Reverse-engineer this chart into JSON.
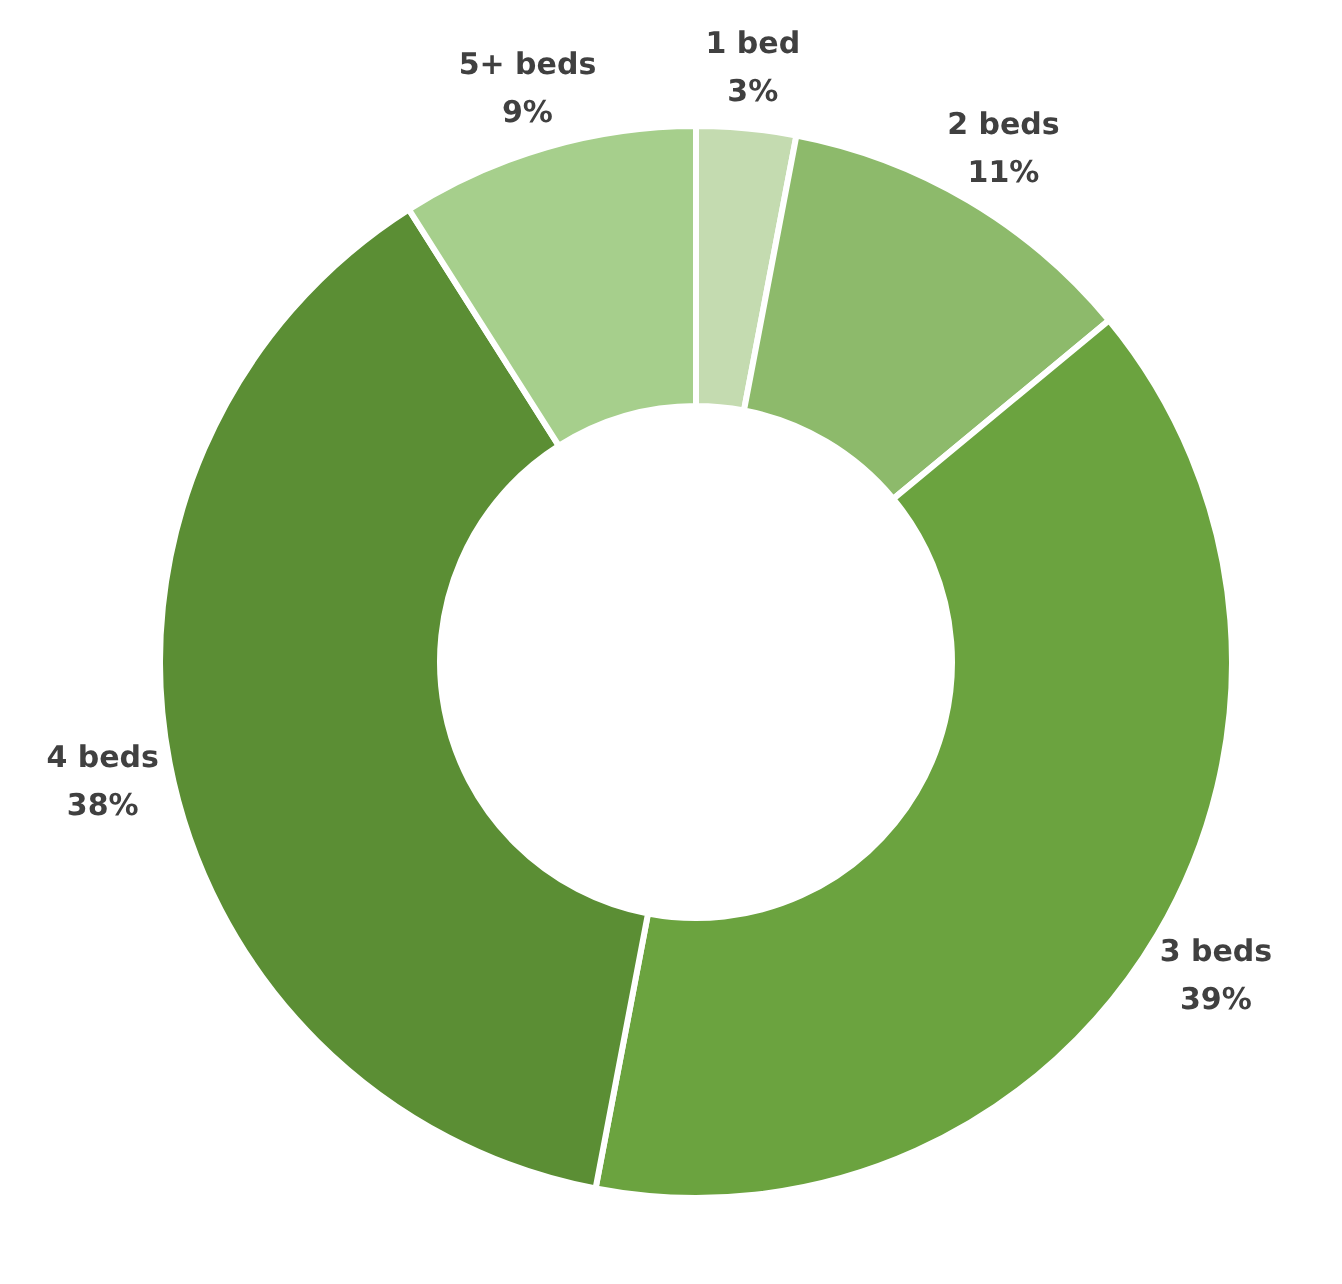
{
  "chart_data": {
    "type": "donut",
    "categories": [
      "1 bed",
      "2 beds",
      "3 beds",
      "4 beds",
      "5+ beds"
    ],
    "values": [
      3,
      11,
      39,
      38,
      9
    ],
    "value_labels": [
      "3%",
      "11%",
      "39%",
      "38%",
      "9%"
    ],
    "colors": [
      "#c4dbb0",
      "#8dba6b",
      "#6ba33f",
      "#5b8e34",
      "#a6cf8c"
    ]
  }
}
